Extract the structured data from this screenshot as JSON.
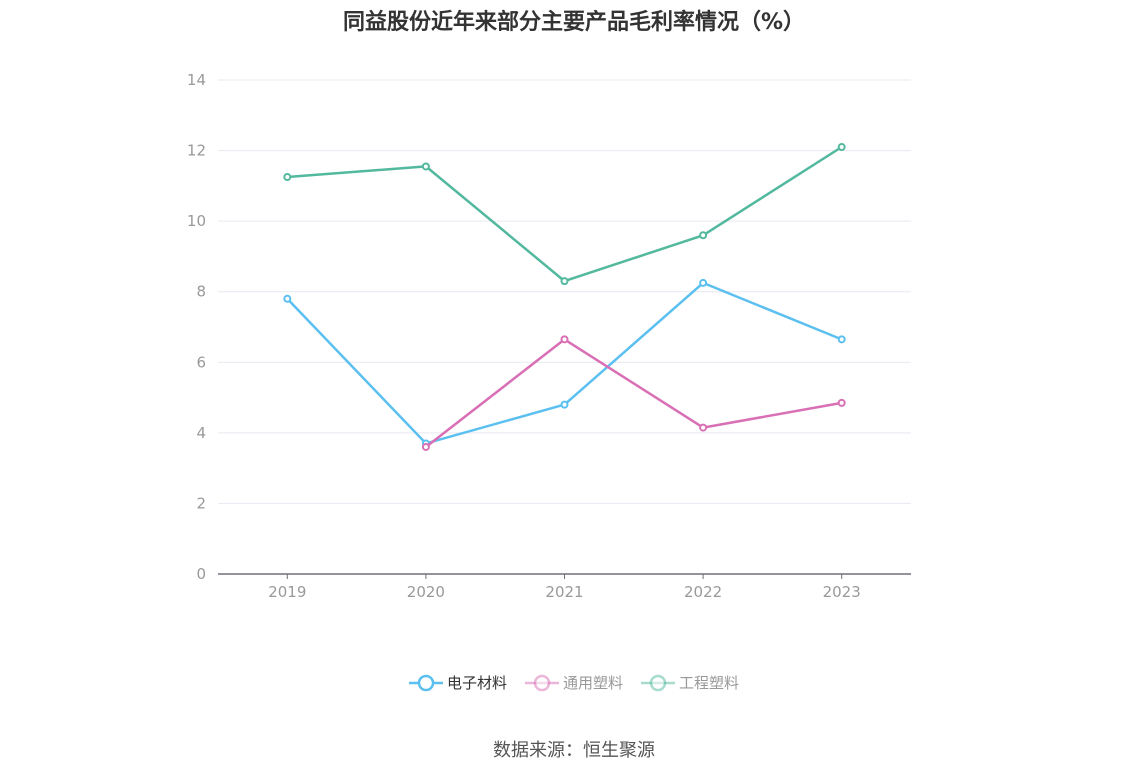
{
  "title": "同益股份近年来部分主要产品毛利率情况（%）",
  "source": "数据来源：恒生聚源",
  "chart_data": {
    "type": "line",
    "categories": [
      "2019",
      "2020",
      "2021",
      "2022",
      "2023"
    ],
    "ylim": [
      0,
      14
    ],
    "yticks": [
      0,
      2,
      4,
      6,
      8,
      10,
      12,
      14
    ],
    "grid": true,
    "legend_position": "bottom",
    "series": [
      {
        "name": "电子材料",
        "color": "#5bc0f0",
        "values": [
          7.8,
          3.7,
          4.8,
          8.25,
          6.65
        ]
      },
      {
        "name": "通用塑料",
        "color": "#d96fb5",
        "values": [
          null,
          3.6,
          6.65,
          4.15,
          4.85
        ]
      },
      {
        "name": "工程塑料",
        "color": "#52b89e",
        "values": [
          11.25,
          11.55,
          8.3,
          9.6,
          12.1
        ]
      }
    ]
  }
}
